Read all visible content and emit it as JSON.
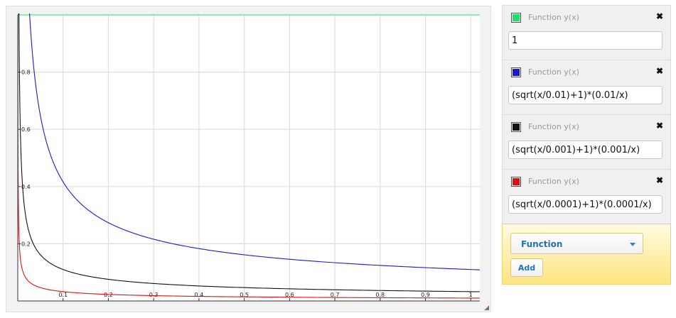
{
  "chart_data": {
    "type": "line",
    "title": "",
    "xlabel": "",
    "ylabel": "",
    "xlim": [
      0,
      1.02
    ],
    "ylim": [
      0,
      1.0
    ],
    "grid": true,
    "x_ticks": [
      0.1,
      0.2,
      0.3,
      0.4,
      0.5,
      0.6,
      0.7,
      0.8,
      0.9,
      1
    ],
    "x_tick_labels": [
      "0.1",
      "0.2",
      "0.3",
      "0.4",
      "0.5",
      "0.6",
      "0.7",
      "0.8",
      "0.9",
      "1"
    ],
    "y_ticks": [
      0.2,
      0.4,
      0.6,
      0.8
    ],
    "y_tick_labels": [
      "0.2",
      "0.4",
      "0.6",
      "0.8"
    ],
    "series": [
      {
        "formula": "1",
        "color": "#19e36a",
        "k": null,
        "x": [
          0,
          1.02
        ],
        "y": [
          1,
          1
        ]
      },
      {
        "formula": "(sqrt(x/0.01)+1)*(0.01/x)",
        "color": "#1a1ad6",
        "k": 0.01,
        "x": [
          0.025,
          0.05,
          0.1,
          0.2,
          0.3,
          0.5,
          0.7,
          1.0
        ],
        "y": [
          1.03,
          0.647,
          0.416,
          0.274,
          0.216,
          0.161,
          0.134,
          0.11
        ]
      },
      {
        "formula": "(sqrt(x/0.001)+1)*(0.001/x)",
        "color": "#111111",
        "k": 0.001,
        "x": [
          0.005,
          0.01,
          0.05,
          0.1,
          0.3,
          0.5,
          1.0
        ],
        "y": [
          0.647,
          0.416,
          0.161,
          0.11,
          0.061,
          0.047,
          0.033
        ]
      },
      {
        "formula": "(sqrt(x/0.0001)+1)*(0.0001/x)",
        "color": "#e01010",
        "k": 0.0001,
        "x": [
          0.0005,
          0.001,
          0.01,
          0.1,
          0.5,
          1.0
        ],
        "y": [
          0.647,
          0.416,
          0.11,
          0.033,
          0.0143,
          0.0101
        ]
      }
    ]
  },
  "functions": [
    {
      "title": "Function y(x)",
      "expression": "1",
      "color": "#19e36a"
    },
    {
      "title": "Function y(x)",
      "expression": "(sqrt(x/0.01)+1)*(0.01/x)",
      "color": "#1a1ad6"
    },
    {
      "title": "Function y(x)",
      "expression": "(sqrt(x/0.001)+1)*(0.001/x)",
      "color": "#111111"
    },
    {
      "title": "Function y(x)",
      "expression": "(sqrt(x/0.0001)+1)*(0.0001/x)",
      "color": "#e01010"
    }
  ],
  "add_panel": {
    "select_value": "Function",
    "add_label": "Add"
  },
  "icons": {
    "remove": "close-icon",
    "resize": "resize-grip-icon",
    "dropdown": "chevron-down-icon"
  }
}
